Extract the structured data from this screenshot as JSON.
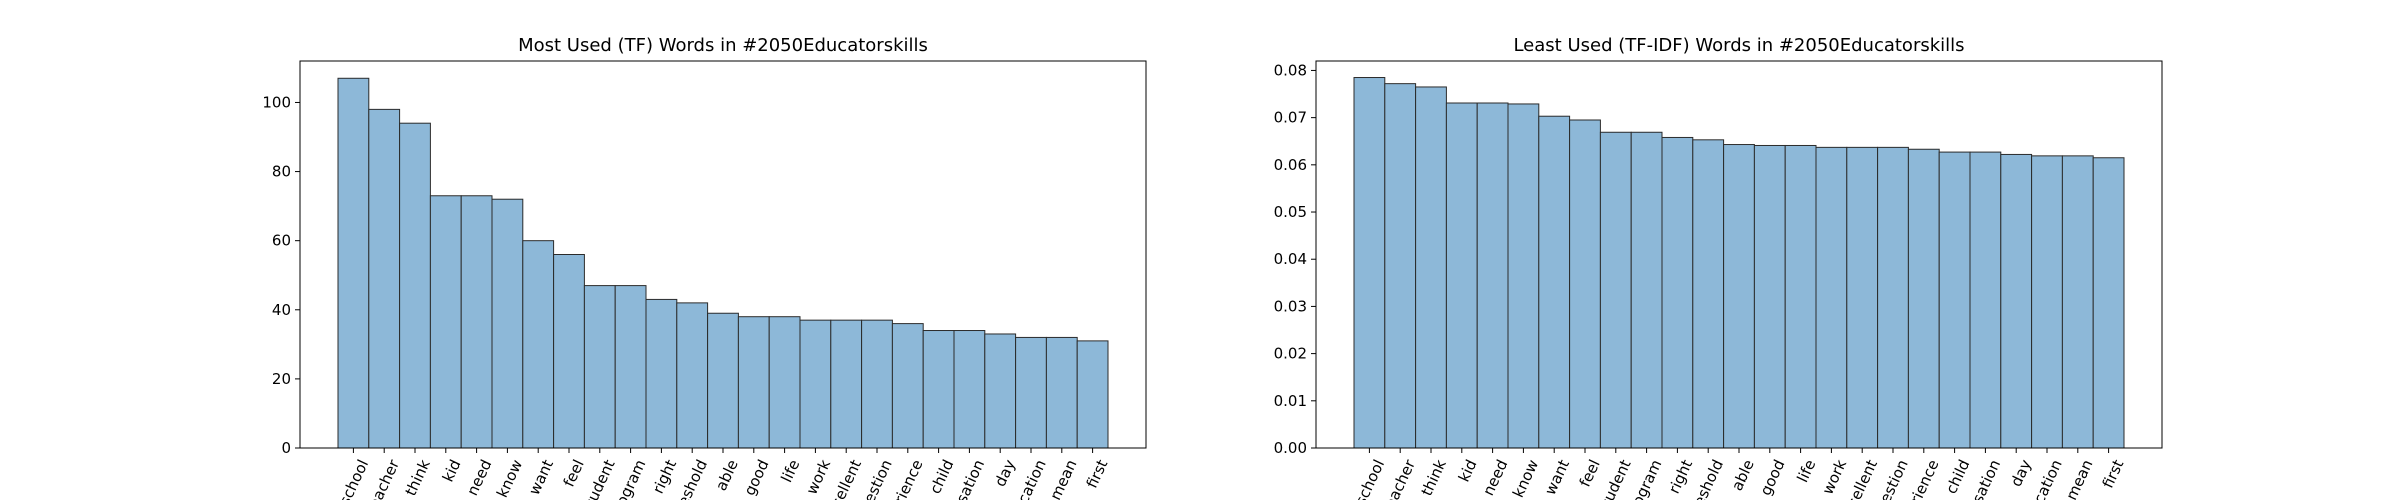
{
  "chart_data": [
    {
      "type": "bar",
      "title": "Most Used (TF) Words in #2050Educatorskills",
      "xlabel": "",
      "ylabel": "",
      "ylim": [
        0,
        112
      ],
      "yticks": [
        0,
        20,
        40,
        60,
        80,
        100
      ],
      "ytick_labels": [
        "0",
        "20",
        "40",
        "60",
        "80",
        "100"
      ],
      "categories": [
        "school",
        "teacher",
        "think",
        "kid",
        "need",
        "know",
        "want",
        "feel",
        "student",
        "program",
        "right",
        "threshold",
        "able",
        "good",
        "life",
        "work",
        "excellent",
        "question",
        "experience",
        "child",
        "conversation",
        "day",
        "education",
        "mean",
        "first"
      ],
      "category_labels": [
        "school",
        "eacher",
        "think",
        "kid",
        "need",
        "know",
        "want",
        "feel",
        "tudent",
        "ogram",
        "right",
        "eshold",
        "able",
        "good",
        "life",
        "work",
        "ccellent",
        "uestion",
        "erience",
        "child",
        "rsation",
        "day",
        "ucation",
        "mean",
        "first"
      ],
      "values": [
        107,
        98,
        94,
        73,
        73,
        72,
        60,
        56,
        47,
        47,
        43,
        42,
        39,
        38,
        38,
        37,
        37,
        37,
        36,
        34,
        34,
        33,
        32,
        32,
        31
      ],
      "grid": false,
      "bar_color": "#8db8d8",
      "edge_color": "#2b2b2b"
    },
    {
      "type": "bar",
      "title": "Least Used (TF-IDF) Words in #2050Educatorskills",
      "xlabel": "",
      "ylabel": "",
      "ylim": [
        0,
        0.082
      ],
      "yticks": [
        0,
        0.01,
        0.02,
        0.03,
        0.04,
        0.05,
        0.06,
        0.07,
        0.08
      ],
      "ytick_labels": [
        "0.00",
        "0.01",
        "0.02",
        "0.03",
        "0.04",
        "0.05",
        "0.06",
        "0.07",
        "0.08"
      ],
      "categories": [
        "school",
        "teacher",
        "think",
        "kid",
        "need",
        "know",
        "want",
        "feel",
        "student",
        "program",
        "right",
        "threshold",
        "able",
        "good",
        "life",
        "work",
        "excellent",
        "question",
        "experience",
        "child",
        "conversation",
        "day",
        "education",
        "mean",
        "first"
      ],
      "category_labels": [
        "school",
        "eacher",
        "think",
        "kid",
        "need",
        "know",
        "want",
        "feel",
        "tudent",
        "ogram",
        "right",
        "eshold",
        "able",
        "good",
        "life",
        "work",
        "ccellent",
        "uestion",
        "erience",
        "child",
        "rsation",
        "day",
        "ucation",
        "mean",
        "first"
      ],
      "values": [
        0.0785,
        0.0772,
        0.0765,
        0.0731,
        0.0731,
        0.0729,
        0.0703,
        0.0695,
        0.0669,
        0.0669,
        0.0658,
        0.0653,
        0.0643,
        0.0641,
        0.0641,
        0.0637,
        0.0637,
        0.0637,
        0.0633,
        0.0627,
        0.0627,
        0.0622,
        0.0619,
        0.0619,
        0.0615
      ],
      "grid": false,
      "bar_color": "#8db8d8",
      "edge_color": "#2b2b2b"
    }
  ]
}
